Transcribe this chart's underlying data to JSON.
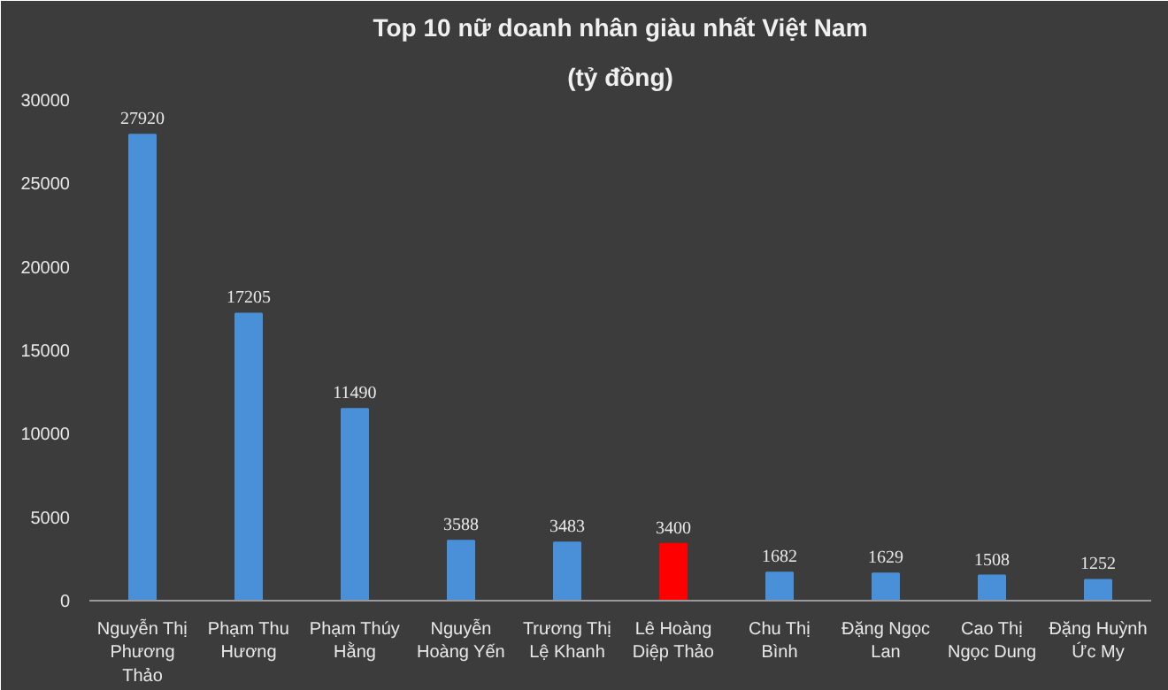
{
  "chart_data": {
    "type": "bar",
    "title": "Top 10 nữ doanh nhân giàu nhất Việt Nam",
    "subtitle": "(tỷ đồng)",
    "categories": [
      "Nguyễn Thị Phương Thảo",
      "Phạm Thu Hương",
      "Phạm Thúy Hằng",
      "Nguyễn Hoàng Yến",
      "Trương Thị Lệ Khanh",
      "Lê Hoàng Diệp Thảo",
      "Chu Thị Bình",
      "Đặng Ngọc Lan",
      "Cao Thị Ngọc Dung",
      "Đặng Huỳnh Ức My"
    ],
    "values": [
      27920,
      17205,
      11490,
      3588,
      3483,
      3400,
      1682,
      1629,
      1508,
      1252
    ],
    "colors": [
      "#4a90d9",
      "#4a90d9",
      "#4a90d9",
      "#4a90d9",
      "#4a90d9",
      "#ff0000",
      "#4a90d9",
      "#4a90d9",
      "#4a90d9",
      "#4a90d9"
    ],
    "ylim": [
      0,
      30000
    ],
    "yticks": [
      0,
      5000,
      10000,
      15000,
      20000,
      25000,
      30000
    ],
    "grid": false,
    "data_labels": true
  }
}
